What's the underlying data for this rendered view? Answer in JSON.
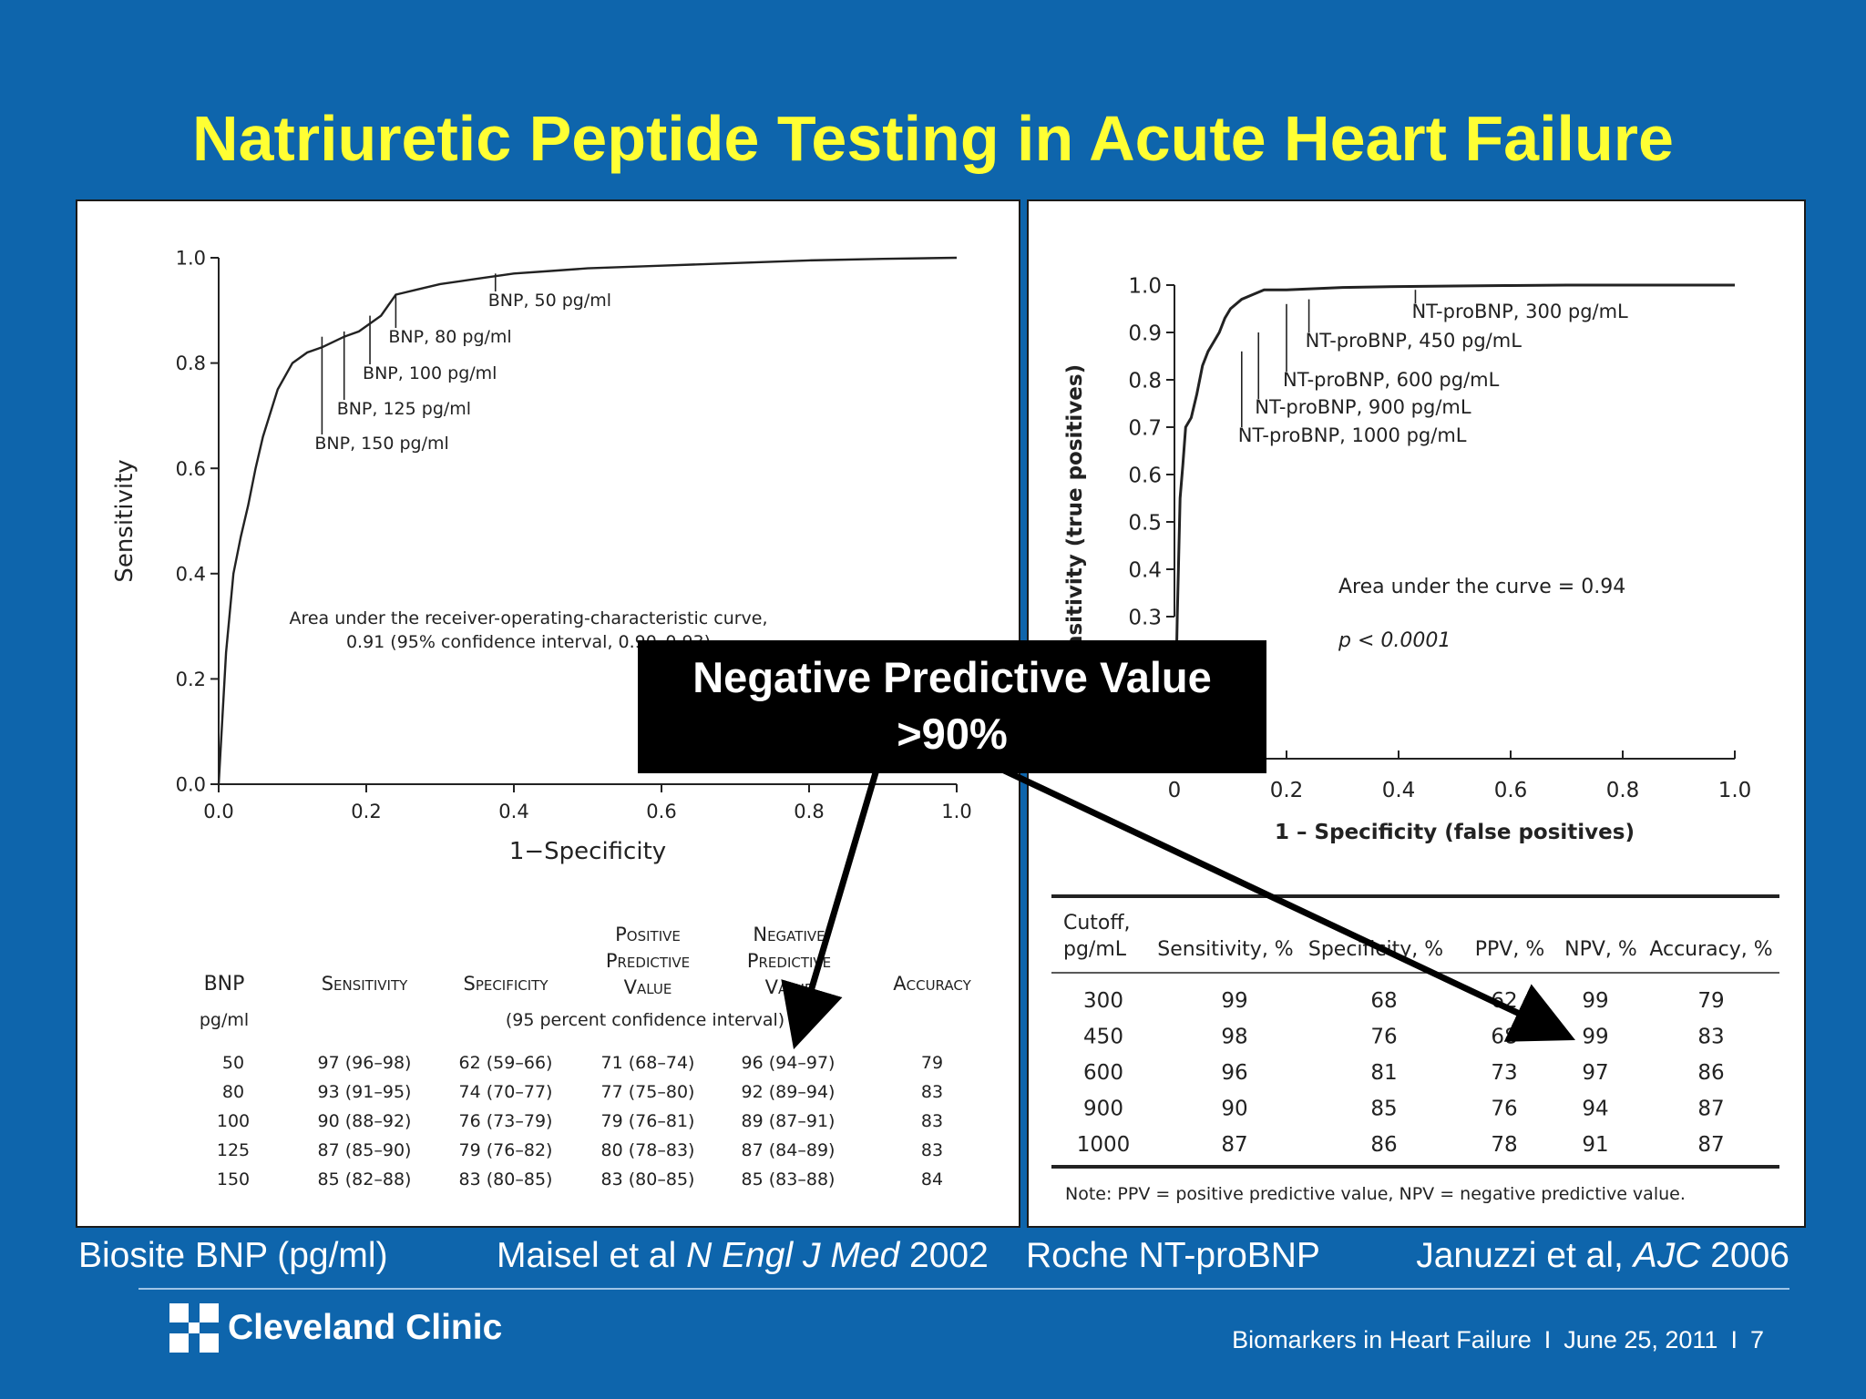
{
  "slide": {
    "title": "Natriuretic Peptide Testing in Acute Heart Failure",
    "callout_line1": "Negative Predictive Value",
    "callout_line2": ">90%",
    "caption_left_product": "Biosite BNP (pg/ml)",
    "caption_left_citation": {
      "authors": "Maisel et al ",
      "journal": "N Engl J Med",
      "year": " 2002"
    },
    "caption_right_product": "Roche NT-proBNP",
    "caption_right_citation": {
      "authors": "Januzzi et al, ",
      "journal": "AJC",
      "year": " 2006"
    },
    "logo": "Cleveland Clinic",
    "footer": {
      "topic": "Biomarkers in Heart Failure",
      "separator": "I",
      "date": "June 25, 2011",
      "page": "7"
    },
    "colors": {
      "background": "#0E65AC",
      "title": "#FFFF33",
      "callout": "#000000"
    }
  },
  "chart_data": [
    {
      "type": "line",
      "xlabel": "1−Specificity",
      "ylabel": "Sensitivity",
      "xlim": [
        0,
        1
      ],
      "ylim": [
        0,
        1
      ],
      "xticks": [
        "0.0",
        "0.2",
        "0.4",
        "0.6",
        "0.8",
        "1.0"
      ],
      "yticks": [
        "0.0",
        "0.2",
        "0.4",
        "0.6",
        "0.8",
        "1.0"
      ],
      "series": [
        {
          "x": [
            0,
            0.01,
            0.02,
            0.03,
            0.04,
            0.05,
            0.06,
            0.08,
            0.1,
            0.12,
            0.14,
            0.17,
            0.19,
            0.2,
            0.22,
            0.24,
            0.27,
            0.3,
            0.35,
            0.4,
            0.45,
            0.5,
            0.6,
            0.7,
            0.8,
            0.9,
            1.0
          ],
          "y": [
            0,
            0.25,
            0.4,
            0.47,
            0.53,
            0.6,
            0.66,
            0.75,
            0.8,
            0.82,
            0.83,
            0.85,
            0.86,
            0.87,
            0.89,
            0.93,
            0.94,
            0.95,
            0.96,
            0.97,
            0.975,
            0.98,
            0.985,
            0.99,
            0.995,
            0.998,
            1.0
          ]
        }
      ],
      "annotations": [
        {
          "label": "BNP, 50 pg/ml",
          "x": 0.375,
          "y": 0.97
        },
        {
          "label": "BNP, 80 pg/ml",
          "x": 0.24,
          "y": 0.93
        },
        {
          "label": "BNP, 100 pg/ml",
          "x": 0.205,
          "y": 0.89
        },
        {
          "label": "BNP, 125 pg/ml",
          "x": 0.17,
          "y": 0.86
        },
        {
          "label": "BNP, 150 pg/ml",
          "x": 0.14,
          "y": 0.85
        }
      ],
      "note": [
        "Area under the receiver-operating-characteristic curve,",
        "0.91 (95% confidence interval, 0.90–0.93)"
      ],
      "table": {
        "headers": [
          [
            "BNP"
          ],
          [
            "Sensitivity"
          ],
          [
            "Specificity"
          ],
          [
            "Positive",
            "Predictive",
            "Value"
          ],
          [
            "Negative",
            "Predictive",
            "Value"
          ],
          [
            "Accuracy"
          ]
        ],
        "subheader": [
          "pg/ml",
          "(95 percent confidence interval)"
        ],
        "rows": [
          [
            "50",
            "97 (96–98)",
            "62 (59–66)",
            "71 (68–74)",
            "96 (94–97)",
            "79"
          ],
          [
            "80",
            "93 (91–95)",
            "74 (70–77)",
            "77 (75–80)",
            "92 (89–94)",
            "83"
          ],
          [
            "100",
            "90 (88–92)",
            "76 (73–79)",
            "79 (76–81)",
            "89 (87–91)",
            "83"
          ],
          [
            "125",
            "87 (85–90)",
            "79 (76–82)",
            "80 (78–83)",
            "87 (84–89)",
            "83"
          ],
          [
            "150",
            "85 (82–88)",
            "83 (80–85)",
            "83 (80–85)",
            "85 (83–88)",
            "84"
          ]
        ]
      }
    },
    {
      "type": "line",
      "xlabel": "1 – Specificity (false positives)",
      "ylabel": "Sensitivity (true positives)",
      "xlim": [
        0,
        1
      ],
      "ylim": [
        0,
        1
      ],
      "xticks": [
        "0",
        "0.2",
        "0.4",
        "0.6",
        "0.8",
        "1.0"
      ],
      "yticks": [
        "0.3",
        "0.4",
        "0.5",
        "0.6",
        "0.7",
        "0.8",
        "0.9",
        "1.0"
      ],
      "series": [
        {
          "x": [
            0,
            0.005,
            0.01,
            0.015,
            0.02,
            0.03,
            0.04,
            0.05,
            0.06,
            0.07,
            0.08,
            0.09,
            0.1,
            0.12,
            0.14,
            0.16,
            0.2,
            0.3,
            0.4,
            0.5,
            0.6,
            0.7,
            0.8,
            0.9,
            1.0
          ],
          "y": [
            0,
            0.3,
            0.55,
            0.62,
            0.7,
            0.72,
            0.77,
            0.83,
            0.86,
            0.88,
            0.9,
            0.93,
            0.95,
            0.97,
            0.98,
            0.99,
            0.99,
            0.995,
            0.997,
            0.998,
            0.999,
            1.0,
            1.0,
            1.0,
            1.0
          ]
        }
      ],
      "annotations": [
        {
          "label": "NT-proBNP, 300 pg/mL",
          "x": 0.43,
          "y": 0.99
        },
        {
          "label": "NT-proBNP, 450 pg/mL",
          "x": 0.24,
          "y": 0.97
        },
        {
          "label": "NT-proBNP, 600 pg/mL",
          "x": 0.2,
          "y": 0.96
        },
        {
          "label": "NT-proBNP, 900 pg/mL",
          "x": 0.15,
          "y": 0.9
        },
        {
          "label": "NT-proBNP, 1000 pg/mL",
          "x": 0.12,
          "y": 0.86
        }
      ],
      "note": [
        "Area under the  curve = 0.94",
        "p < 0.0001"
      ],
      "table": {
        "headers": [
          [
            "Cutoff,",
            "pg/mL"
          ],
          [
            "Sensitivity, %"
          ],
          [
            "Specificity, %"
          ],
          [
            "PPV, %"
          ],
          [
            "NPV, %"
          ],
          [
            "Accuracy, %"
          ]
        ],
        "rows": [
          [
            "300",
            "99",
            "68",
            "62",
            "99",
            "79"
          ],
          [
            "450",
            "98",
            "76",
            "68",
            "99",
            "83"
          ],
          [
            "600",
            "96",
            "81",
            "73",
            "97",
            "86"
          ],
          [
            "900",
            "90",
            "85",
            "76",
            "94",
            "87"
          ],
          [
            "1000",
            "87",
            "86",
            "78",
            "91",
            "87"
          ]
        ],
        "footnote": "Note: PPV = positive predictive value, NPV = negative predictive value."
      }
    }
  ]
}
